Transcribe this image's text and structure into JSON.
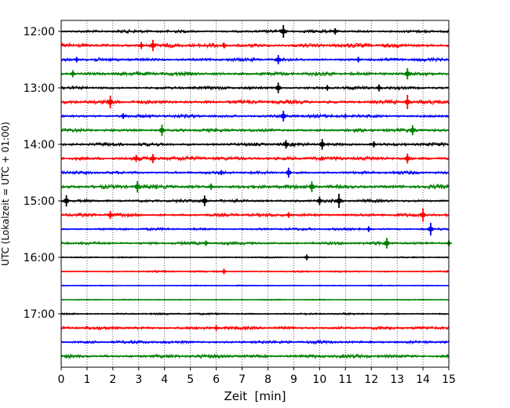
{
  "chart_data": {
    "type": "seismic-helicorder",
    "xlabel": "Zeit  [min]",
    "ylabel": "UTC (Lokalzeit = UTC + 01:00)",
    "xlim": [
      0,
      15
    ],
    "x_ticks": [
      0,
      1,
      2,
      3,
      4,
      5,
      6,
      7,
      8,
      9,
      10,
      11,
      12,
      13,
      14,
      15
    ],
    "x_tick_labels": [
      "0",
      "1",
      "2",
      "3",
      "4",
      "5",
      "6",
      "7",
      "8",
      "9",
      "10",
      "11",
      "12",
      "13",
      "14",
      "15"
    ],
    "vertical_grid": "dotted",
    "minutes_per_line": 15,
    "start_time": "12:00",
    "y_tick_labels": [
      "12:00",
      "13:00",
      "14:00",
      "15:00",
      "16:00",
      "17:00"
    ],
    "trace_colors": [
      "#000000",
      "#ff0000",
      "#0000ff",
      "#008000"
    ],
    "traces": [
      {
        "time": "12:00",
        "noise": 0.55,
        "spikes": [
          {
            "x": 8.6,
            "amp": 1.8
          },
          {
            "x": 10.6,
            "amp": 0.9
          }
        ]
      },
      {
        "time": "12:15",
        "noise": 0.75,
        "spikes": [
          {
            "x": 3.1,
            "amp": 1.0
          },
          {
            "x": 3.55,
            "amp": 1.6
          },
          {
            "x": 6.3,
            "amp": 0.8
          }
        ]
      },
      {
        "time": "12:30",
        "noise": 0.6,
        "spikes": [
          {
            "x": 0.6,
            "amp": 0.8
          },
          {
            "x": 8.4,
            "amp": 1.3
          },
          {
            "x": 11.5,
            "amp": 0.8
          }
        ]
      },
      {
        "time": "12:45",
        "noise": 0.7,
        "spikes": [
          {
            "x": 0.45,
            "amp": 1.0
          },
          {
            "x": 13.4,
            "amp": 1.6
          }
        ]
      },
      {
        "time": "13:00",
        "noise": 0.55,
        "spikes": [
          {
            "x": 8.4,
            "amp": 1.5
          },
          {
            "x": 10.3,
            "amp": 0.8
          },
          {
            "x": 12.3,
            "amp": 1.0
          }
        ]
      },
      {
        "time": "13:15",
        "noise": 0.7,
        "spikes": [
          {
            "x": 1.9,
            "amp": 1.8
          },
          {
            "x": 13.4,
            "amp": 2.0
          }
        ]
      },
      {
        "time": "13:30",
        "noise": 0.6,
        "spikes": [
          {
            "x": 2.4,
            "amp": 0.8
          },
          {
            "x": 8.6,
            "amp": 1.5
          },
          {
            "x": 11.0,
            "amp": 0.7
          }
        ]
      },
      {
        "time": "13:45",
        "noise": 0.6,
        "spikes": [
          {
            "x": 3.9,
            "amp": 1.6
          },
          {
            "x": 13.6,
            "amp": 1.4
          }
        ]
      },
      {
        "time": "14:00",
        "noise": 0.6,
        "spikes": [
          {
            "x": 8.7,
            "amp": 1.2
          },
          {
            "x": 10.1,
            "amp": 1.5
          },
          {
            "x": 12.1,
            "amp": 0.9
          }
        ]
      },
      {
        "time": "14:15",
        "noise": 0.75,
        "spikes": [
          {
            "x": 2.9,
            "amp": 1.0
          },
          {
            "x": 3.55,
            "amp": 1.3
          },
          {
            "x": 13.4,
            "amp": 1.4
          }
        ]
      },
      {
        "time": "14:30",
        "noise": 0.55,
        "spikes": [
          {
            "x": 8.8,
            "amp": 1.4
          },
          {
            "x": 6.2,
            "amp": 0.7
          }
        ]
      },
      {
        "time": "14:45",
        "noise": 0.75,
        "spikes": [
          {
            "x": 2.95,
            "amp": 1.6
          },
          {
            "x": 5.8,
            "amp": 0.9
          },
          {
            "x": 9.7,
            "amp": 1.5
          }
        ]
      },
      {
        "time": "15:00",
        "noise": 0.55,
        "spikes": [
          {
            "x": 0.2,
            "amp": 1.6
          },
          {
            "x": 5.55,
            "amp": 1.5
          },
          {
            "x": 10.0,
            "amp": 1.2
          },
          {
            "x": 10.75,
            "amp": 2.0
          }
        ]
      },
      {
        "time": "15:15",
        "noise": 0.6,
        "spikes": [
          {
            "x": 1.9,
            "amp": 1.1
          },
          {
            "x": 8.8,
            "amp": 0.8
          },
          {
            "x": 14.0,
            "amp": 1.9
          }
        ]
      },
      {
        "time": "15:30",
        "noise": 0.45,
        "spikes": [
          {
            "x": 11.9,
            "amp": 0.8
          },
          {
            "x": 14.3,
            "amp": 1.8
          }
        ]
      },
      {
        "time": "15:45",
        "noise": 0.55,
        "spikes": [
          {
            "x": 5.6,
            "amp": 0.8
          },
          {
            "x": 12.6,
            "amp": 1.5
          },
          {
            "x": 15.0,
            "amp": 0.8
          }
        ]
      },
      {
        "time": "16:00",
        "noise": 0.25,
        "spikes": [
          {
            "x": 9.5,
            "amp": 0.8
          }
        ]
      },
      {
        "time": "16:15",
        "noise": 0.3,
        "spikes": [
          {
            "x": 6.3,
            "amp": 0.8
          }
        ]
      },
      {
        "time": "16:30",
        "noise": 0.2,
        "spikes": []
      },
      {
        "time": "16:45",
        "noise": 0.2,
        "spikes": []
      },
      {
        "time": "17:00",
        "noise": 0.35,
        "spikes": []
      },
      {
        "time": "17:15",
        "noise": 0.6,
        "spikes": [
          {
            "x": 6.0,
            "amp": 0.8
          }
        ]
      },
      {
        "time": "17:30",
        "noise": 0.55,
        "spikes": []
      },
      {
        "time": "17:45",
        "noise": 0.65,
        "spikes": []
      }
    ]
  }
}
